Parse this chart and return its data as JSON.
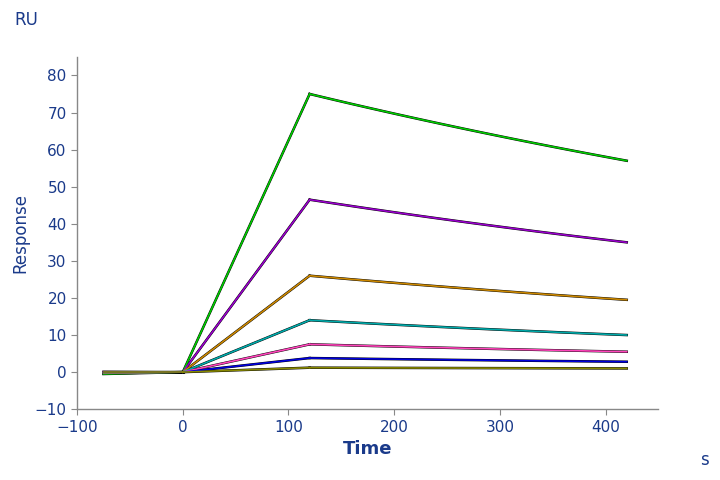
{
  "xlabel": "Time",
  "ylabel": "Response",
  "ru_label": "RU",
  "s_label": "s",
  "xlim": [
    -100,
    450
  ],
  "ylim": [
    -10,
    85
  ],
  "xticks": [
    -100,
    0,
    100,
    200,
    300,
    400
  ],
  "yticks": [
    -10,
    0,
    10,
    20,
    30,
    40,
    50,
    60,
    70,
    80
  ],
  "association_start": 0,
  "association_end": 120,
  "dissociation_end": 420,
  "baseline_start": -75,
  "curves": [
    {
      "color": "#00cc00",
      "peak": 75,
      "end": 57,
      "baseline_noise": -0.5
    },
    {
      "color": "#9900cc",
      "peak": 46.5,
      "end": 35,
      "baseline_noise": -0.3
    },
    {
      "color": "#cc8800",
      "peak": 26,
      "end": 19.5,
      "baseline_noise": -0.2
    },
    {
      "color": "#00aaaa",
      "peak": 14,
      "end": 10,
      "baseline_noise": -0.1
    },
    {
      "color": "#ff44bb",
      "peak": 7.5,
      "end": 5.5,
      "baseline_noise": 0.1
    },
    {
      "color": "#0000dd",
      "peak": 3.8,
      "end": 2.8,
      "baseline_noise": 0.0
    },
    {
      "color": "#888800",
      "peak": 1.2,
      "end": 1.0,
      "baseline_noise": 0.0
    }
  ],
  "black_color": "#000000",
  "background_color": "#ffffff",
  "axis_color": "#888888",
  "text_color": "#1a3a8a",
  "tick_color": "#1a3a8a",
  "xlabel_fontsize": 13,
  "ylabel_fontsize": 12,
  "ru_fontsize": 12,
  "tick_fontsize": 11
}
